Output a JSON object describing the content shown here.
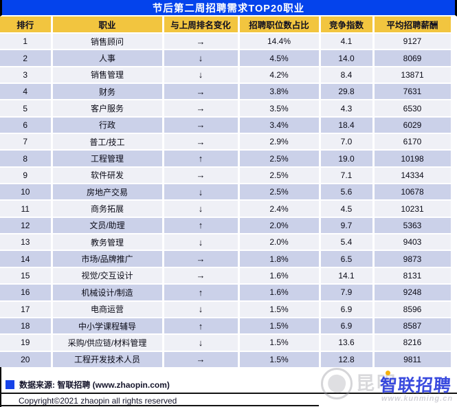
{
  "chart_data": {
    "type": "table",
    "title": "节后第二周招聘需求TOP20职业",
    "columns": [
      "排行",
      "职业",
      "与上周排名变化",
      "招聘职位数占比",
      "竞争指数",
      "平均招聘薪酬"
    ],
    "rows": [
      [
        "1",
        "销售顾问",
        "→",
        "14.4%",
        "4.1",
        "9127"
      ],
      [
        "2",
        "人事",
        "↓",
        "4.5%",
        "14.0",
        "8069"
      ],
      [
        "3",
        "销售管理",
        "↓",
        "4.2%",
        "8.4",
        "13871"
      ],
      [
        "4",
        "财务",
        "→",
        "3.8%",
        "29.8",
        "7631"
      ],
      [
        "5",
        "客户服务",
        "→",
        "3.5%",
        "4.3",
        "6530"
      ],
      [
        "6",
        "行政",
        "→",
        "3.4%",
        "18.4",
        "6029"
      ],
      [
        "7",
        "普工/技工",
        "→",
        "2.9%",
        "7.0",
        "6170"
      ],
      [
        "8",
        "工程管理",
        "↑",
        "2.5%",
        "19.0",
        "10198"
      ],
      [
        "9",
        "软件研发",
        "→",
        "2.5%",
        "7.1",
        "14334"
      ],
      [
        "10",
        "房地产交易",
        "↓",
        "2.5%",
        "5.6",
        "10678"
      ],
      [
        "11",
        "商务拓展",
        "↓",
        "2.4%",
        "4.5",
        "10231"
      ],
      [
        "12",
        "文员/助理",
        "↑",
        "2.0%",
        "9.7",
        "5363"
      ],
      [
        "13",
        "教务管理",
        "↓",
        "2.0%",
        "5.4",
        "9403"
      ],
      [
        "14",
        "市场/品牌推广",
        "→",
        "1.8%",
        "6.5",
        "9873"
      ],
      [
        "15",
        "视觉/交互设计",
        "→",
        "1.6%",
        "14.1",
        "8131"
      ],
      [
        "16",
        "机械设计/制造",
        "↑",
        "1.6%",
        "7.9",
        "9248"
      ],
      [
        "17",
        "电商运营",
        "↓",
        "1.5%",
        "6.9",
        "8596"
      ],
      [
        "18",
        "中小学课程辅导",
        "↑",
        "1.5%",
        "6.9",
        "8587"
      ],
      [
        "19",
        "采购/供应链/材料管理",
        "↓",
        "1.5%",
        "13.6",
        "8216"
      ],
      [
        "20",
        "工程开发技术人员",
        "→",
        "1.5%",
        "12.8",
        "9811"
      ]
    ],
    "source": "数据来源: 智联招聘 (www.zhaopin.com)",
    "copyright": "Copyright©2021 zhaopin all rights reserved"
  },
  "watermark": {
    "brand": "智联招聘",
    "city": "昆明",
    "url": "www.kunming.cn"
  },
  "colors": {
    "title_bg": "#0443EC",
    "header_bg": "#F2C53F",
    "row_odd": "#EFF0F6",
    "row_even": "#CBD1E9",
    "legend_blue": "#1743E8",
    "brand_blue": "#2B3DDC"
  }
}
